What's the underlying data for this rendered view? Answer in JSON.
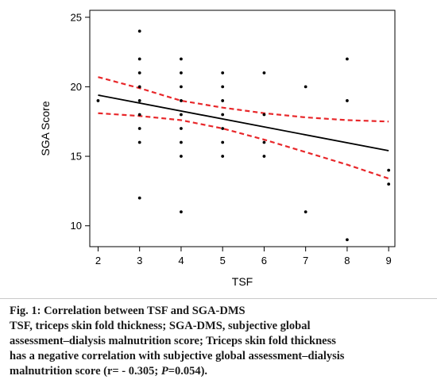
{
  "chart_data": {
    "type": "scatter",
    "xlabel": "TSF",
    "ylabel": "SGA Score",
    "xlim": [
      1.8,
      9.15
    ],
    "ylim": [
      8.5,
      25.5
    ],
    "xticks": [
      2,
      3,
      4,
      5,
      6,
      7,
      8,
      9
    ],
    "yticks": [
      10,
      15,
      20,
      25
    ],
    "grid": false,
    "points": [
      {
        "x": 2,
        "y": 19
      },
      {
        "x": 3,
        "y": 24
      },
      {
        "x": 3,
        "y": 22
      },
      {
        "x": 3,
        "y": 21
      },
      {
        "x": 3,
        "y": 20
      },
      {
        "x": 3,
        "y": 19
      },
      {
        "x": 3,
        "y": 18
      },
      {
        "x": 3,
        "y": 17
      },
      {
        "x": 3,
        "y": 16
      },
      {
        "x": 3,
        "y": 12
      },
      {
        "x": 4,
        "y": 22
      },
      {
        "x": 4,
        "y": 21
      },
      {
        "x": 4,
        "y": 20
      },
      {
        "x": 4,
        "y": 19
      },
      {
        "x": 4,
        "y": 18
      },
      {
        "x": 4,
        "y": 17
      },
      {
        "x": 4,
        "y": 16
      },
      {
        "x": 4,
        "y": 15
      },
      {
        "x": 4,
        "y": 11
      },
      {
        "x": 5,
        "y": 21
      },
      {
        "x": 5,
        "y": 20
      },
      {
        "x": 5,
        "y": 19
      },
      {
        "x": 5,
        "y": 18
      },
      {
        "x": 5,
        "y": 17
      },
      {
        "x": 5,
        "y": 16
      },
      {
        "x": 5,
        "y": 15
      },
      {
        "x": 6,
        "y": 21
      },
      {
        "x": 6,
        "y": 18
      },
      {
        "x": 6,
        "y": 16
      },
      {
        "x": 6,
        "y": 15
      },
      {
        "x": 7,
        "y": 20
      },
      {
        "x": 7,
        "y": 11
      },
      {
        "x": 8,
        "y": 22
      },
      {
        "x": 8,
        "y": 19
      },
      {
        "x": 8,
        "y": 9
      },
      {
        "x": 9,
        "y": 14
      },
      {
        "x": 9,
        "y": 13
      }
    ],
    "fit_line": {
      "x": [
        2,
        9
      ],
      "y": [
        19.4,
        15.4
      ],
      "color": "#000000"
    },
    "ci_upper": {
      "x": [
        2,
        3,
        4,
        5,
        6,
        7,
        8,
        9
      ],
      "y": [
        20.7,
        19.9,
        19.0,
        18.5,
        18.1,
        17.8,
        17.6,
        17.5
      ],
      "color": "#e8272a"
    },
    "ci_lower": {
      "x": [
        2,
        3,
        4,
        5,
        6,
        7,
        8,
        9
      ],
      "y": [
        18.1,
        17.9,
        17.6,
        17.0,
        16.2,
        15.3,
        14.4,
        13.4
      ],
      "color": "#e8272a"
    }
  },
  "caption": {
    "title": "Fig. 1: Correlation between TSF and SGA-DMS",
    "line1": "TSF, triceps skin fold thickness; SGA-DMS, subjective global",
    "line2": "assessment–dialysis malnutrition score; Triceps skin fold thickness",
    "line3": "has a negative correlation with subjective global assessment–dialysis",
    "line4_a": "malnutrition score (r= - 0.305; ",
    "line4_p": "P",
    "line4_b": "=0.054)."
  }
}
